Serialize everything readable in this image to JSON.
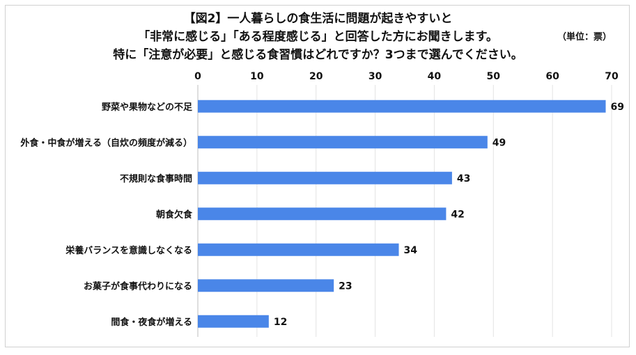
{
  "chart_data": {
    "type": "bar",
    "orientation": "horizontal",
    "title_lines": [
      "【図2】一人暮らしの食生活に問題が起きやすいと",
      "「非常に感じる」「ある程度感じる」と回答した方にお聞きします。",
      "特に「注意が必要」と感じる食習慣はどれですか？3つまで選んでください。"
    ],
    "unit_label": "（単位：票）",
    "categories": [
      "野菜や果物などの不足",
      "外食・中食が増える（自炊の頻度が減る）",
      "不規則な食事時間",
      "朝食欠食",
      "栄養バランスを意識しなくなる",
      "お菓子が食事代わりになる",
      "間食・夜食が増える"
    ],
    "values": [
      69,
      49,
      43,
      42,
      34,
      23,
      12
    ],
    "xlim": [
      0,
      70
    ],
    "xticks": [
      0,
      10,
      20,
      30,
      40,
      50,
      60,
      70
    ],
    "axis_position": "top",
    "grid": true,
    "bar_color": "#4a86e8"
  }
}
